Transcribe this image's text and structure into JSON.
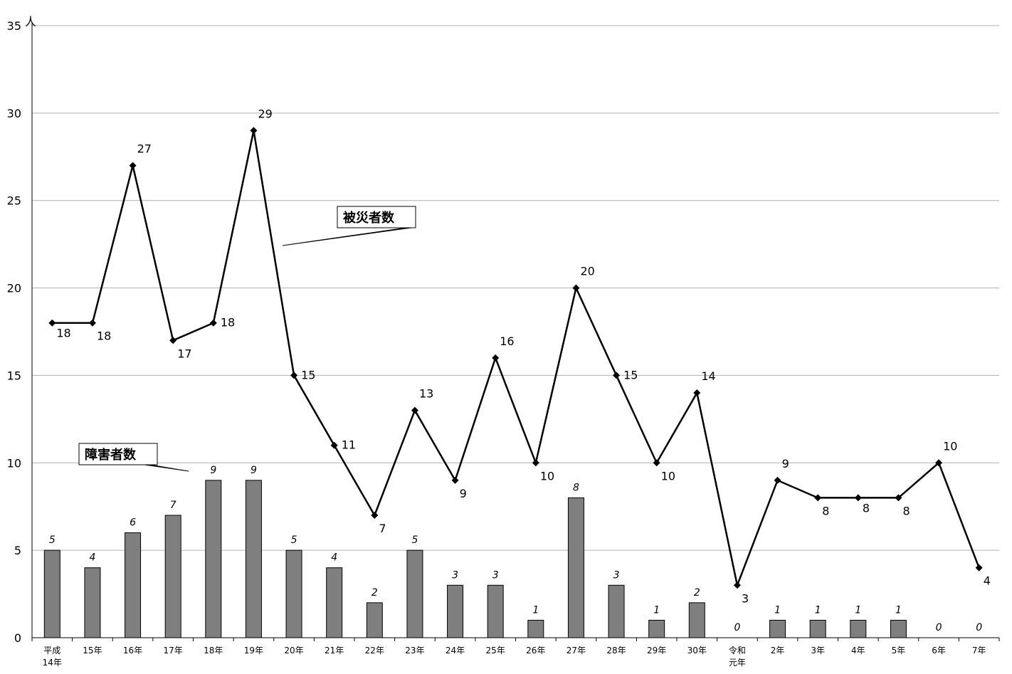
{
  "chart_data": {
    "type": "bar+line",
    "y_unit": "人",
    "ylim": [
      0,
      35
    ],
    "yticks": [
      0,
      5,
      10,
      15,
      20,
      25,
      30,
      35
    ],
    "grid": true,
    "categories": [
      "平成\n14年",
      "15年",
      "16年",
      "17年",
      "18年",
      "19年",
      "20年",
      "21年",
      "22年",
      "23年",
      "24年",
      "25年",
      "26年",
      "27年",
      "28年",
      "29年",
      "30年",
      "令和\n元年",
      "2年",
      "3年",
      "4年",
      "5年",
      "6年",
      "7年"
    ],
    "series": [
      {
        "name": "障害者数",
        "type": "bar",
        "values": [
          5,
          4,
          6,
          7,
          9,
          9,
          5,
          4,
          2,
          5,
          3,
          3,
          1,
          8,
          3,
          1,
          2,
          0,
          1,
          1,
          1,
          1,
          0,
          0
        ]
      },
      {
        "name": "被災者数",
        "type": "line",
        "values": [
          18,
          18,
          27,
          17,
          18,
          29,
          15,
          11,
          7,
          13,
          9,
          16,
          10,
          20,
          15,
          10,
          14,
          3,
          9,
          8,
          8,
          8,
          10,
          4
        ]
      }
    ]
  },
  "colors": {
    "bar_fill": "#7f7f7f",
    "line": "#000000",
    "grid": "#b0b0b0"
  }
}
